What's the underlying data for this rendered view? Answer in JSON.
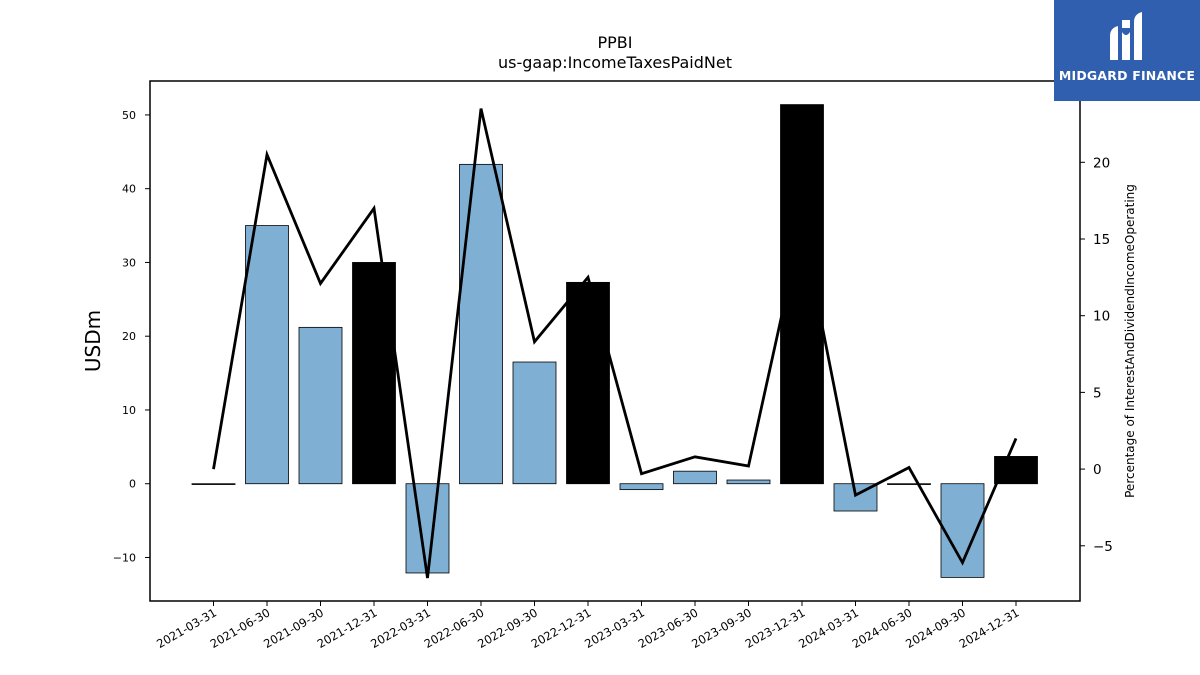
{
  "chart_data": {
    "type": "bar",
    "title": "PPBI",
    "subtitle": "us-gaap:IncomeTaxesPaidNet",
    "ylabel": "USDm",
    "y2label": "Percentage of InterestAndDividendIncomeOperating",
    "categories": [
      "2021-03-31",
      "2021-06-30",
      "2021-09-30",
      "2021-12-31",
      "2022-03-31",
      "2022-06-30",
      "2022-09-30",
      "2022-12-31",
      "2023-03-31",
      "2023-06-30",
      "2023-09-30",
      "2023-12-31",
      "2024-03-31",
      "2024-06-30",
      "2024-09-30",
      "2024-12-31"
    ],
    "series": [
      {
        "kind": "bar",
        "axis": "left",
        "values": [
          0.0,
          35.0,
          21.2,
          30.0,
          -12.1,
          43.3,
          16.5,
          27.3,
          -0.8,
          1.7,
          0.5,
          51.4,
          -3.7,
          0.0,
          -12.7,
          3.7
        ],
        "colors": [
          "#7fb0d4",
          "#7fb0d4",
          "#7fb0d4",
          "#000000",
          "#7fb0d4",
          "#7fb0d4",
          "#7fb0d4",
          "#000000",
          "#7fb0d4",
          "#7fb0d4",
          "#7fb0d4",
          "#000000",
          "#7fb0d4",
          "#7fb0d4",
          "#7fb0d4",
          "#000000"
        ]
      },
      {
        "kind": "line",
        "axis": "right",
        "color": "#000000",
        "values": [
          0.0,
          20.5,
          12.1,
          17.0,
          -7.1,
          23.5,
          8.3,
          12.5,
          -0.3,
          0.8,
          0.2,
          16.0,
          -1.7,
          0.1,
          -6.1,
          2.0
        ]
      }
    ],
    "ylim": [
      -15.9,
      54.6
    ],
    "yticks": [
      -10,
      0,
      10,
      20,
      30,
      40,
      50
    ],
    "y2lim": [
      -8.6,
      25.3
    ],
    "y2ticks": [
      -5,
      0,
      5,
      10,
      15,
      20
    ]
  },
  "logo": {
    "text": "MIDGARD FINANCE",
    "color": "#2f5fae"
  }
}
